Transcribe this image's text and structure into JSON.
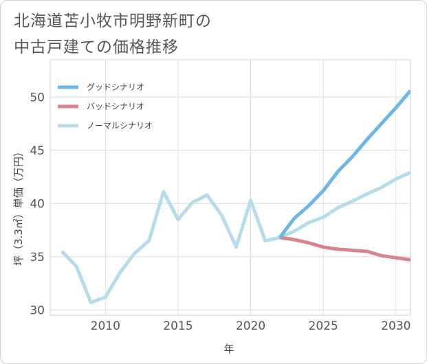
{
  "title_lines": [
    "北海道苫小牧市明野新町の",
    "中古戸建ての価格推移"
  ],
  "chart_data": {
    "type": "line",
    "title": "北海道苫小牧市明野新町の中古戸建ての価格推移",
    "xlabel": "年",
    "ylabel": "坪（3.3㎡）単価（万円）",
    "xlim": [
      2006.2,
      2031
    ],
    "ylim": [
      29.5,
      53.5
    ],
    "xticks": [
      2010,
      2015,
      2020,
      2025,
      2030
    ],
    "yticks": [
      30,
      35,
      40,
      45,
      50
    ],
    "grid": true,
    "legend_position": "top-left",
    "series": [
      {
        "name": "グッドシナリオ",
        "color": "#6bb8e8",
        "x": [
          2022,
          2023,
          2024,
          2025,
          2026,
          2027,
          2028,
          2029,
          2030,
          2031
        ],
        "values": [
          36.8,
          38.6,
          39.8,
          41.2,
          43.0,
          44.4,
          46.0,
          47.5,
          49.0,
          50.6
        ]
      },
      {
        "name": "バッドシナリオ",
        "color": "#d9848c",
        "x": [
          2022,
          2023,
          2024,
          2025,
          2026,
          2027,
          2028,
          2029,
          2030,
          2031
        ],
        "values": [
          36.8,
          36.6,
          36.3,
          35.9,
          35.7,
          35.6,
          35.5,
          35.1,
          34.9,
          34.7
        ]
      },
      {
        "name": "ノーマルシナリオ",
        "color": "#b6dcec",
        "x": [
          2007,
          2008,
          2009,
          2010,
          2011,
          2012,
          2013,
          2014,
          2015,
          2016,
          2017,
          2018,
          2019,
          2020,
          2021,
          2022,
          2023,
          2024,
          2025,
          2026,
          2027,
          2028,
          2029,
          2030,
          2031
        ],
        "values": [
          35.5,
          34.1,
          30.7,
          31.2,
          33.5,
          35.3,
          36.5,
          41.1,
          38.5,
          40.1,
          40.8,
          38.9,
          35.9,
          40.3,
          36.5,
          36.8,
          37.4,
          38.2,
          38.7,
          39.6,
          40.2,
          40.9,
          41.5,
          42.3,
          42.9
        ]
      }
    ]
  }
}
